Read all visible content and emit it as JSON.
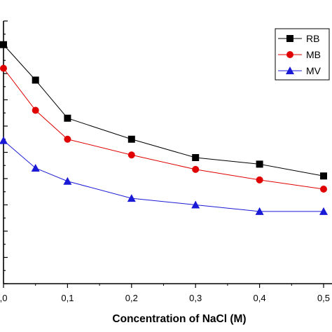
{
  "chart_data": {
    "type": "line",
    "xlabel": "Concentration of NaCl (M)",
    "ylabel": "",
    "x": [
      0.0,
      0.05,
      0.1,
      0.2,
      0.3,
      0.4,
      0.5
    ],
    "xlim": [
      0.0,
      0.5
    ],
    "xticks": [
      0.0,
      0.1,
      0.2,
      0.3,
      0.4,
      0.5
    ],
    "xtick_labels": [
      ",0",
      "0,1",
      "0,2",
      "0,3",
      "0,4",
      "0,5"
    ],
    "ylim": [
      0,
      100
    ],
    "grid": false,
    "legend_position": "top-right",
    "series": [
      {
        "name": "RB",
        "marker": "square",
        "color": "#000000",
        "values": [
          91,
          77.5,
          63,
          55,
          48,
          45.5,
          41
        ]
      },
      {
        "name": "MB",
        "marker": "circle",
        "color": "#e00000",
        "values": [
          82,
          66,
          55,
          49,
          43.5,
          39.5,
          36
        ]
      },
      {
        "name": "MV",
        "marker": "triangle",
        "color": "#1a1ad6",
        "values": [
          54.5,
          44,
          39,
          32.5,
          30,
          27.5,
          27.5
        ]
      }
    ]
  }
}
